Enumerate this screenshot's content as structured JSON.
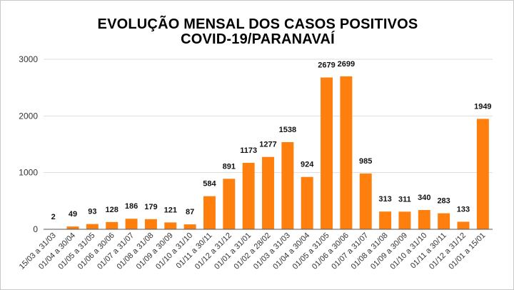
{
  "chart_data": {
    "type": "bar",
    "title": "EVOLUÇÃO MENSAL DOS CASOS POSITIVOS",
    "subtitle": "COVID-19/PARANAVAÍ",
    "categories": [
      "15/03 a 31/03",
      "01/04 a 30/04",
      "01/05 a 31/05",
      "01/06 a 30/06",
      "01/07 a 31/07",
      "01/08 a 31/08",
      "01/09 a 30/09",
      "01/10 a 31/10",
      "01/11 a 30/11",
      "01/12 a 31/12",
      "01/01 a 31/01",
      "01/02 a 28/02",
      "01/03 a 31/03",
      "01/04 a 30/04",
      "01/05 a 31/05",
      "01/06 a 30/06",
      "01/07 a 31/07",
      "01/08 a 31/08",
      "01/09 a 30/09",
      "01/10 a 31/10",
      "01/11 a 30/11",
      "01/12 a 31/12",
      "01/01 a 15/01"
    ],
    "values": [
      2,
      49,
      93,
      128,
      186,
      179,
      121,
      87,
      584,
      891,
      1173,
      1277,
      1538,
      924,
      2679,
      2699,
      985,
      313,
      311,
      340,
      283,
      133,
      1949
    ],
    "ylim": [
      0,
      3000
    ],
    "yticks": [
      0,
      1000,
      2000,
      3000
    ],
    "xlabel": "",
    "ylabel": "",
    "grid": true,
    "legend": "none",
    "bar_color": "#ff7f0e",
    "grid_color": "#dddddd",
    "axis_color": "#555555"
  }
}
